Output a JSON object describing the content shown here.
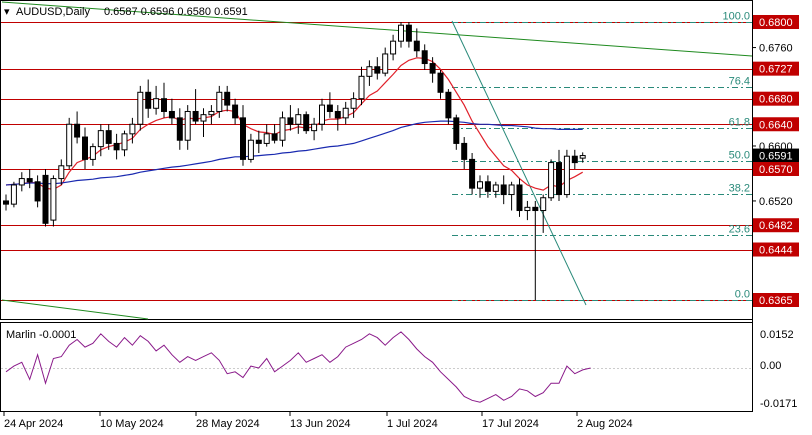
{
  "header": {
    "symbol": "AUDUSD,Daily",
    "ohlc": "0.6587 0.6596 0.6580 0.6591"
  },
  "indicator": {
    "label": "Marlin -0.0001",
    "scale": [
      "0.0152",
      "0.00",
      "-0.0171"
    ]
  },
  "colors": {
    "background": "#ffffff",
    "candle": "#000000",
    "level_line": "#c00000",
    "fast_ma": "#e0202a",
    "slow_ma": "#1a2ab0",
    "fib": "#2a8a7a",
    "trendline_green": "#1f8a1f",
    "oscillator": "#8a1a8a",
    "grid": "#cccccc",
    "current_price_box": "#000000"
  },
  "chart_data": [
    {
      "type": "candlestick",
      "title": "AUDUSD,Daily",
      "ylim": [
        0.634,
        0.681
      ],
      "x_tick_labels": [
        "24 Apr 2024",
        "10 May 2024",
        "28 May 2024",
        "13 Jun 2024",
        "1 Jul 2024",
        "17 Jul 2024",
        "2 Aug 2024"
      ],
      "y_tick_labels": [
        "0.6800",
        "0.6760",
        "0.6727",
        "0.6680",
        "0.6640",
        "0.6600",
        "0.6591",
        "0.6570",
        "0.6520",
        "0.6482",
        "0.6444",
        "0.6365"
      ],
      "current_price": "0.6591",
      "horizontal_levels": [
        {
          "label": "0.6800",
          "value": 0.68
        },
        {
          "label": "0.6727",
          "value": 0.6727
        },
        {
          "label": "0.6680",
          "value": 0.668
        },
        {
          "label": "0.6640",
          "value": 0.664
        },
        {
          "label": "0.6570",
          "value": 0.657
        },
        {
          "label": "0.6482",
          "value": 0.6482
        },
        {
          "label": "0.6444",
          "value": 0.6444
        },
        {
          "label": "0.6365",
          "value": 0.6365
        }
      ],
      "fibonacci": [
        {
          "label": "100.0",
          "value": 0.68
        },
        {
          "label": "76.4",
          "value": 0.6698
        },
        {
          "label": "61.8",
          "value": 0.6634
        },
        {
          "label": "50.0",
          "value": 0.6583
        },
        {
          "label": "38.2",
          "value": 0.6531
        },
        {
          "label": "23.6",
          "value": 0.6467
        },
        {
          "label": "0.0",
          "value": 0.6365
        }
      ],
      "candles": [
        [
          0.652,
          0.653,
          0.6505,
          0.6515
        ],
        [
          0.6515,
          0.655,
          0.651,
          0.6545
        ],
        [
          0.6545,
          0.6565,
          0.6535,
          0.6555
        ],
        [
          0.6555,
          0.657,
          0.654,
          0.655
        ],
        [
          0.655,
          0.656,
          0.651,
          0.652
        ],
        [
          0.656,
          0.657,
          0.648,
          0.6485
        ],
        [
          0.649,
          0.656,
          0.648,
          0.6555
        ],
        [
          0.6555,
          0.6585,
          0.6545,
          0.6575
        ],
        [
          0.6575,
          0.665,
          0.657,
          0.664
        ],
        [
          0.664,
          0.666,
          0.661,
          0.662
        ],
        [
          0.662,
          0.6635,
          0.657,
          0.6585
        ],
        [
          0.6585,
          0.661,
          0.6575,
          0.6605
        ],
        [
          0.6605,
          0.664,
          0.659,
          0.663
        ],
        [
          0.663,
          0.664,
          0.66,
          0.661
        ],
        [
          0.661,
          0.6625,
          0.6585,
          0.66
        ],
        [
          0.66,
          0.663,
          0.659,
          0.6625
        ],
        [
          0.6625,
          0.665,
          0.661,
          0.664
        ],
        [
          0.664,
          0.67,
          0.663,
          0.669
        ],
        [
          0.669,
          0.671,
          0.665,
          0.6665
        ],
        [
          0.6665,
          0.67,
          0.6655,
          0.668
        ],
        [
          0.668,
          0.6705,
          0.665,
          0.666
        ],
        [
          0.666,
          0.668,
          0.664,
          0.665
        ],
        [
          0.665,
          0.6665,
          0.66,
          0.6615
        ],
        [
          0.6615,
          0.667,
          0.66,
          0.666
        ],
        [
          0.666,
          0.6695,
          0.664,
          0.6645
        ],
        [
          0.6645,
          0.6665,
          0.662,
          0.6655
        ],
        [
          0.6655,
          0.667,
          0.664,
          0.666
        ],
        [
          0.666,
          0.67,
          0.665,
          0.669
        ],
        [
          0.669,
          0.67,
          0.666,
          0.667
        ],
        [
          0.667,
          0.668,
          0.664,
          0.665
        ],
        [
          0.665,
          0.667,
          0.6575,
          0.6585
        ],
        [
          0.6585,
          0.6625,
          0.658,
          0.6615
        ],
        [
          0.6615,
          0.663,
          0.6595,
          0.661
        ],
        [
          0.661,
          0.664,
          0.6605,
          0.6625
        ],
        [
          0.6625,
          0.664,
          0.661,
          0.6615
        ],
        [
          0.6615,
          0.666,
          0.6605,
          0.665
        ],
        [
          0.665,
          0.667,
          0.663,
          0.664
        ],
        [
          0.664,
          0.6665,
          0.6625,
          0.6655
        ],
        [
          0.6655,
          0.666,
          0.6625,
          0.663
        ],
        [
          0.663,
          0.665,
          0.6615,
          0.664
        ],
        [
          0.664,
          0.668,
          0.663,
          0.667
        ],
        [
          0.667,
          0.669,
          0.665,
          0.666
        ],
        [
          0.666,
          0.667,
          0.663,
          0.665
        ],
        [
          0.665,
          0.6675,
          0.664,
          0.6665
        ],
        [
          0.6665,
          0.669,
          0.665,
          0.668
        ],
        [
          0.668,
          0.673,
          0.667,
          0.6715
        ],
        [
          0.6715,
          0.674,
          0.67,
          0.673
        ],
        [
          0.673,
          0.6745,
          0.671,
          0.672
        ],
        [
          0.672,
          0.676,
          0.6715,
          0.675
        ],
        [
          0.675,
          0.678,
          0.674,
          0.677
        ],
        [
          0.677,
          0.68,
          0.676,
          0.6795
        ],
        [
          0.6795,
          0.68,
          0.676,
          0.677
        ],
        [
          0.677,
          0.679,
          0.6745,
          0.6755
        ],
        [
          0.6755,
          0.6765,
          0.6725,
          0.6735
        ],
        [
          0.6735,
          0.6745,
          0.6705,
          0.672
        ],
        [
          0.672,
          0.6725,
          0.668,
          0.669
        ],
        [
          0.669,
          0.6695,
          0.664,
          0.665
        ],
        [
          0.665,
          0.6655,
          0.66,
          0.661
        ],
        [
          0.661,
          0.662,
          0.657,
          0.6585
        ],
        [
          0.6585,
          0.6595,
          0.653,
          0.654
        ],
        [
          0.654,
          0.656,
          0.6525,
          0.655
        ],
        [
          0.655,
          0.656,
          0.6525,
          0.6535
        ],
        [
          0.6535,
          0.655,
          0.6525,
          0.6545
        ],
        [
          0.6545,
          0.656,
          0.6515,
          0.653
        ],
        [
          0.653,
          0.655,
          0.6505,
          0.6545
        ],
        [
          0.6545,
          0.6555,
          0.6495,
          0.6505
        ],
        [
          0.6505,
          0.652,
          0.649,
          0.651
        ],
        [
          0.651,
          0.652,
          0.6365,
          0.6505
        ],
        [
          0.6505,
          0.653,
          0.647,
          0.6525
        ],
        [
          0.6525,
          0.6585,
          0.652,
          0.658
        ],
        [
          0.658,
          0.66,
          0.652,
          0.653
        ],
        [
          0.653,
          0.66,
          0.6525,
          0.659
        ],
        [
          0.659,
          0.66,
          0.657,
          0.658
        ],
        [
          0.6587,
          0.6596,
          0.658,
          0.6591
        ]
      ],
      "series": [
        {
          "values": [
            0.6545,
            0.6546,
            0.6547,
            0.6549,
            0.6548,
            0.654,
            0.6538,
            0.6545,
            0.6565,
            0.658,
            0.6585,
            0.659,
            0.66,
            0.6605,
            0.6608,
            0.6612,
            0.6618,
            0.6632,
            0.664,
            0.6646,
            0.665,
            0.6652,
            0.6646,
            0.665,
            0.6648,
            0.665,
            0.6652,
            0.666,
            0.6662,
            0.666,
            0.664,
            0.6633,
            0.6628,
            0.6627,
            0.6624,
            0.663,
            0.6632,
            0.6636,
            0.6634,
            0.6636,
            0.6645,
            0.6648,
            0.6648,
            0.6652,
            0.6658,
            0.6672,
            0.6685,
            0.6692,
            0.6705,
            0.6718,
            0.6732,
            0.674,
            0.6744,
            0.6743,
            0.6738,
            0.6726,
            0.671,
            0.669,
            0.667,
            0.6645,
            0.6625,
            0.6605,
            0.659,
            0.6575,
            0.6568,
            0.6555,
            0.6545,
            0.654,
            0.6537,
            0.6545,
            0.6542,
            0.6552,
            0.6558,
            0.6565
          ]
        },
        {
          "values": [
            0.6545,
            0.6546,
            0.6547,
            0.6548,
            0.6548,
            0.6547,
            0.6547,
            0.6548,
            0.655,
            0.6552,
            0.6553,
            0.6554,
            0.6556,
            0.6557,
            0.6558,
            0.656,
            0.6562,
            0.6565,
            0.6567,
            0.6569,
            0.6571,
            0.6573,
            0.6574,
            0.6576,
            0.6578,
            0.658,
            0.6582,
            0.6585,
            0.6587,
            0.6589,
            0.6589,
            0.659,
            0.6591,
            0.6592,
            0.6593,
            0.6595,
            0.6596,
            0.6598,
            0.6599,
            0.6601,
            0.6603,
            0.6605,
            0.6606,
            0.6608,
            0.661,
            0.6614,
            0.6618,
            0.6622,
            0.6626,
            0.663,
            0.6635,
            0.6638,
            0.6641,
            0.6643,
            0.6644,
            0.6645,
            0.6645,
            0.6644,
            0.6643,
            0.6641,
            0.664,
            0.664,
            0.6639,
            0.6638,
            0.6638,
            0.6637,
            0.6636,
            0.6634,
            0.6633,
            0.6633,
            0.6632,
            0.6632,
            0.6632,
            0.6632
          ]
        }
      ]
    },
    {
      "type": "line",
      "title": "Marlin -0.0001",
      "ylim": [
        -0.02,
        0.02
      ],
      "series": [
        {
          "values": [
            -0.002,
            0.001,
            0.003,
            -0.006,
            0.007,
            -0.008,
            0.005,
            0.006,
            0.012,
            0.015,
            0.011,
            0.013,
            0.018,
            0.014,
            0.011,
            0.016,
            0.012,
            0.017,
            0.014,
            0.009,
            0.012,
            0.007,
            0.003,
            0.006,
            0.004,
            0.006,
            0.008,
            0.004,
            -0.003,
            -0.002,
            -0.005,
            0.001,
            0.0,
            0.005,
            -0.002,
            0.001,
            0.004,
            0.008,
            0.003,
            0.005,
            0.007,
            0.003,
            0.006,
            0.011,
            0.013,
            0.015,
            0.018,
            0.016,
            0.012,
            0.016,
            0.019,
            0.015,
            0.01,
            0.006,
            0.003,
            -0.002,
            -0.006,
            -0.01,
            -0.015,
            -0.017,
            -0.018,
            -0.016,
            -0.014,
            -0.017,
            -0.015,
            -0.011,
            -0.012,
            -0.015,
            -0.013,
            -0.008,
            -0.008,
            0.001,
            -0.003,
            -0.001,
            0.0
          ]
        }
      ]
    }
  ]
}
